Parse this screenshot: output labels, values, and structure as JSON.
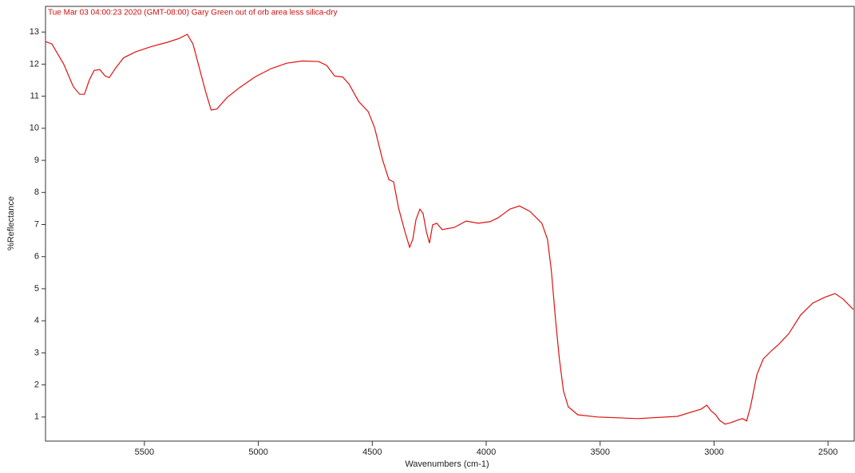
{
  "chart_data": {
    "type": "line",
    "title": "Tue Mar 03 04:00:23 2020 (GMT-08:00) Gary Green out of orb area less silica-dry",
    "x_label": "Wavenumbers (cm-1)",
    "y_label": "%Reflectance",
    "color": "#e01010",
    "x": [
      5934,
      5906,
      5854,
      5812,
      5784,
      5763,
      5742,
      5721,
      5696,
      5672,
      5654,
      5626,
      5591,
      5539,
      5469,
      5399,
      5347,
      5312,
      5287,
      5259,
      5231,
      5207,
      5182,
      5137,
      5084,
      5015,
      4944,
      4875,
      4805,
      4735,
      4700,
      4665,
      4630,
      4602,
      4560,
      4518,
      4490,
      4455,
      4427,
      4406,
      4385,
      4357,
      4336,
      4322,
      4308,
      4291,
      4277,
      4263,
      4249,
      4235,
      4217,
      4193,
      4140,
      4088,
      4035,
      3983,
      3948,
      3896,
      3854,
      3808,
      3756,
      3731,
      3714,
      3696,
      3679,
      3661,
      3640,
      3598,
      3511,
      3336,
      3161,
      3056,
      3032,
      3014,
      2993,
      2976,
      2952,
      2924,
      2899,
      2875,
      2857,
      2840,
      2812,
      2784,
      2749,
      2717,
      2672,
      2620,
      2567,
      2515,
      2469,
      2434,
      2389
    ],
    "values": [
      12.7,
      12.63,
      12.0,
      11.3,
      11.06,
      11.06,
      11.5,
      11.8,
      11.83,
      11.63,
      11.58,
      11.88,
      12.2,
      12.38,
      12.55,
      12.68,
      12.8,
      12.93,
      12.63,
      11.88,
      11.13,
      10.57,
      10.6,
      10.96,
      11.26,
      11.6,
      11.86,
      12.03,
      12.1,
      12.08,
      11.96,
      11.63,
      11.6,
      11.38,
      10.84,
      10.52,
      10.02,
      9.02,
      8.4,
      8.33,
      7.53,
      6.79,
      6.29,
      6.54,
      7.16,
      7.48,
      7.34,
      6.79,
      6.42,
      6.99,
      7.04,
      6.84,
      6.91,
      7.11,
      7.04,
      7.09,
      7.21,
      7.48,
      7.58,
      7.41,
      7.04,
      6.54,
      5.55,
      4.06,
      2.81,
      1.82,
      1.32,
      1.07,
      1.0,
      0.95,
      1.02,
      1.25,
      1.37,
      1.2,
      1.07,
      0.9,
      0.78,
      0.83,
      0.9,
      0.95,
      0.88,
      1.32,
      2.32,
      2.81,
      3.06,
      3.26,
      3.6,
      4.18,
      4.55,
      4.73,
      4.85,
      4.68,
      4.35
    ],
    "xlim": [
      5934,
      2385
    ],
    "xticks": [
      5500,
      5000,
      4500,
      4000,
      3500,
      3000,
      2500
    ],
    "ylim": [
      0.25,
      13.8
    ],
    "yticks": [
      1,
      2,
      3,
      4,
      5,
      6,
      7,
      8,
      9,
      10,
      11,
      12,
      13
    ]
  }
}
